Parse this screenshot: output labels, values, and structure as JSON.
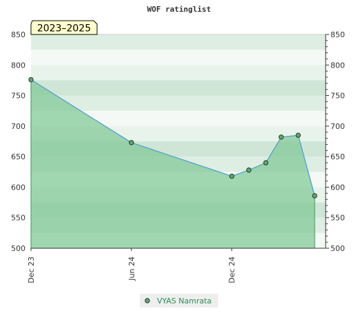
{
  "chart_data": {
    "type": "area",
    "title": "WOF ratinglist",
    "range_label": "2023–2025",
    "ylim": [
      500,
      850
    ],
    "y_ticks": [
      500,
      550,
      600,
      650,
      700,
      750,
      800,
      850
    ],
    "x_ticks": [
      {
        "label": "Dec 23",
        "date": "2023-12-01"
      },
      {
        "label": "Jun 24",
        "date": "2024-06-01"
      },
      {
        "label": "Dec 24",
        "date": "2024-12-01"
      }
    ],
    "xlim": [
      "2023-12-01",
      "2025-05-21"
    ],
    "series": [
      {
        "name": "VYAS Namrata",
        "points": [
          {
            "date": "2023-12-01",
            "value": 776
          },
          {
            "date": "2024-06-01",
            "value": 673
          },
          {
            "date": "2024-12-01",
            "value": 618
          },
          {
            "date": "2025-01-01",
            "value": 628
          },
          {
            "date": "2025-02-01",
            "value": 640
          },
          {
            "date": "2025-03-01",
            "value": 682
          },
          {
            "date": "2025-04-01",
            "value": 685
          },
          {
            "date": "2025-05-01",
            "value": 586
          }
        ]
      }
    ],
    "colors": {
      "area_fill": "#7fc796",
      "line": "#4a9ccf",
      "marker": "#5aaa6a",
      "legend_text": "#2e8b57"
    },
    "legend": "bottom-center",
    "grid": true
  }
}
